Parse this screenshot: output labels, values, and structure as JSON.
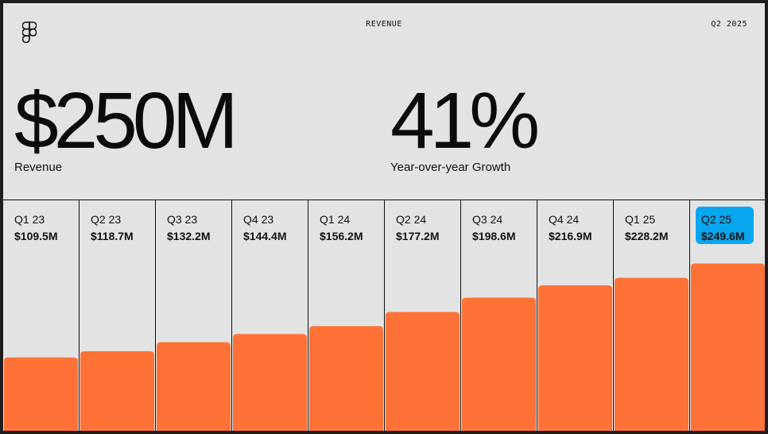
{
  "header": {
    "title": "REVENUE",
    "date": "Q2 2025",
    "logo": "figma-logo-icon"
  },
  "kpis": [
    {
      "value": "$250M",
      "label": "Revenue"
    },
    {
      "value": "41%",
      "label": "Year-over-year Growth"
    }
  ],
  "chart_data": {
    "type": "bar",
    "categories": [
      "Q1 23",
      "Q2 23",
      "Q3 23",
      "Q4 23",
      "Q1 24",
      "Q2 24",
      "Q3 24",
      "Q4 24",
      "Q1 25",
      "Q2 25"
    ],
    "value_labels": [
      "$109.5M",
      "$118.7M",
      "$132.2M",
      "$144.4M",
      "$156.2M",
      "$177.2M",
      "$198.6M",
      "$216.9M",
      "$228.2M",
      "$249.6M"
    ],
    "values": [
      109.5,
      118.7,
      132.2,
      144.4,
      156.2,
      177.2,
      198.6,
      216.9,
      228.2,
      249.6
    ],
    "unit": "$M",
    "highlighted_category": "Q2 25",
    "colors": {
      "bar": "#ff7237",
      "highlight": "#07a6ee",
      "divider": "#111111"
    }
  }
}
